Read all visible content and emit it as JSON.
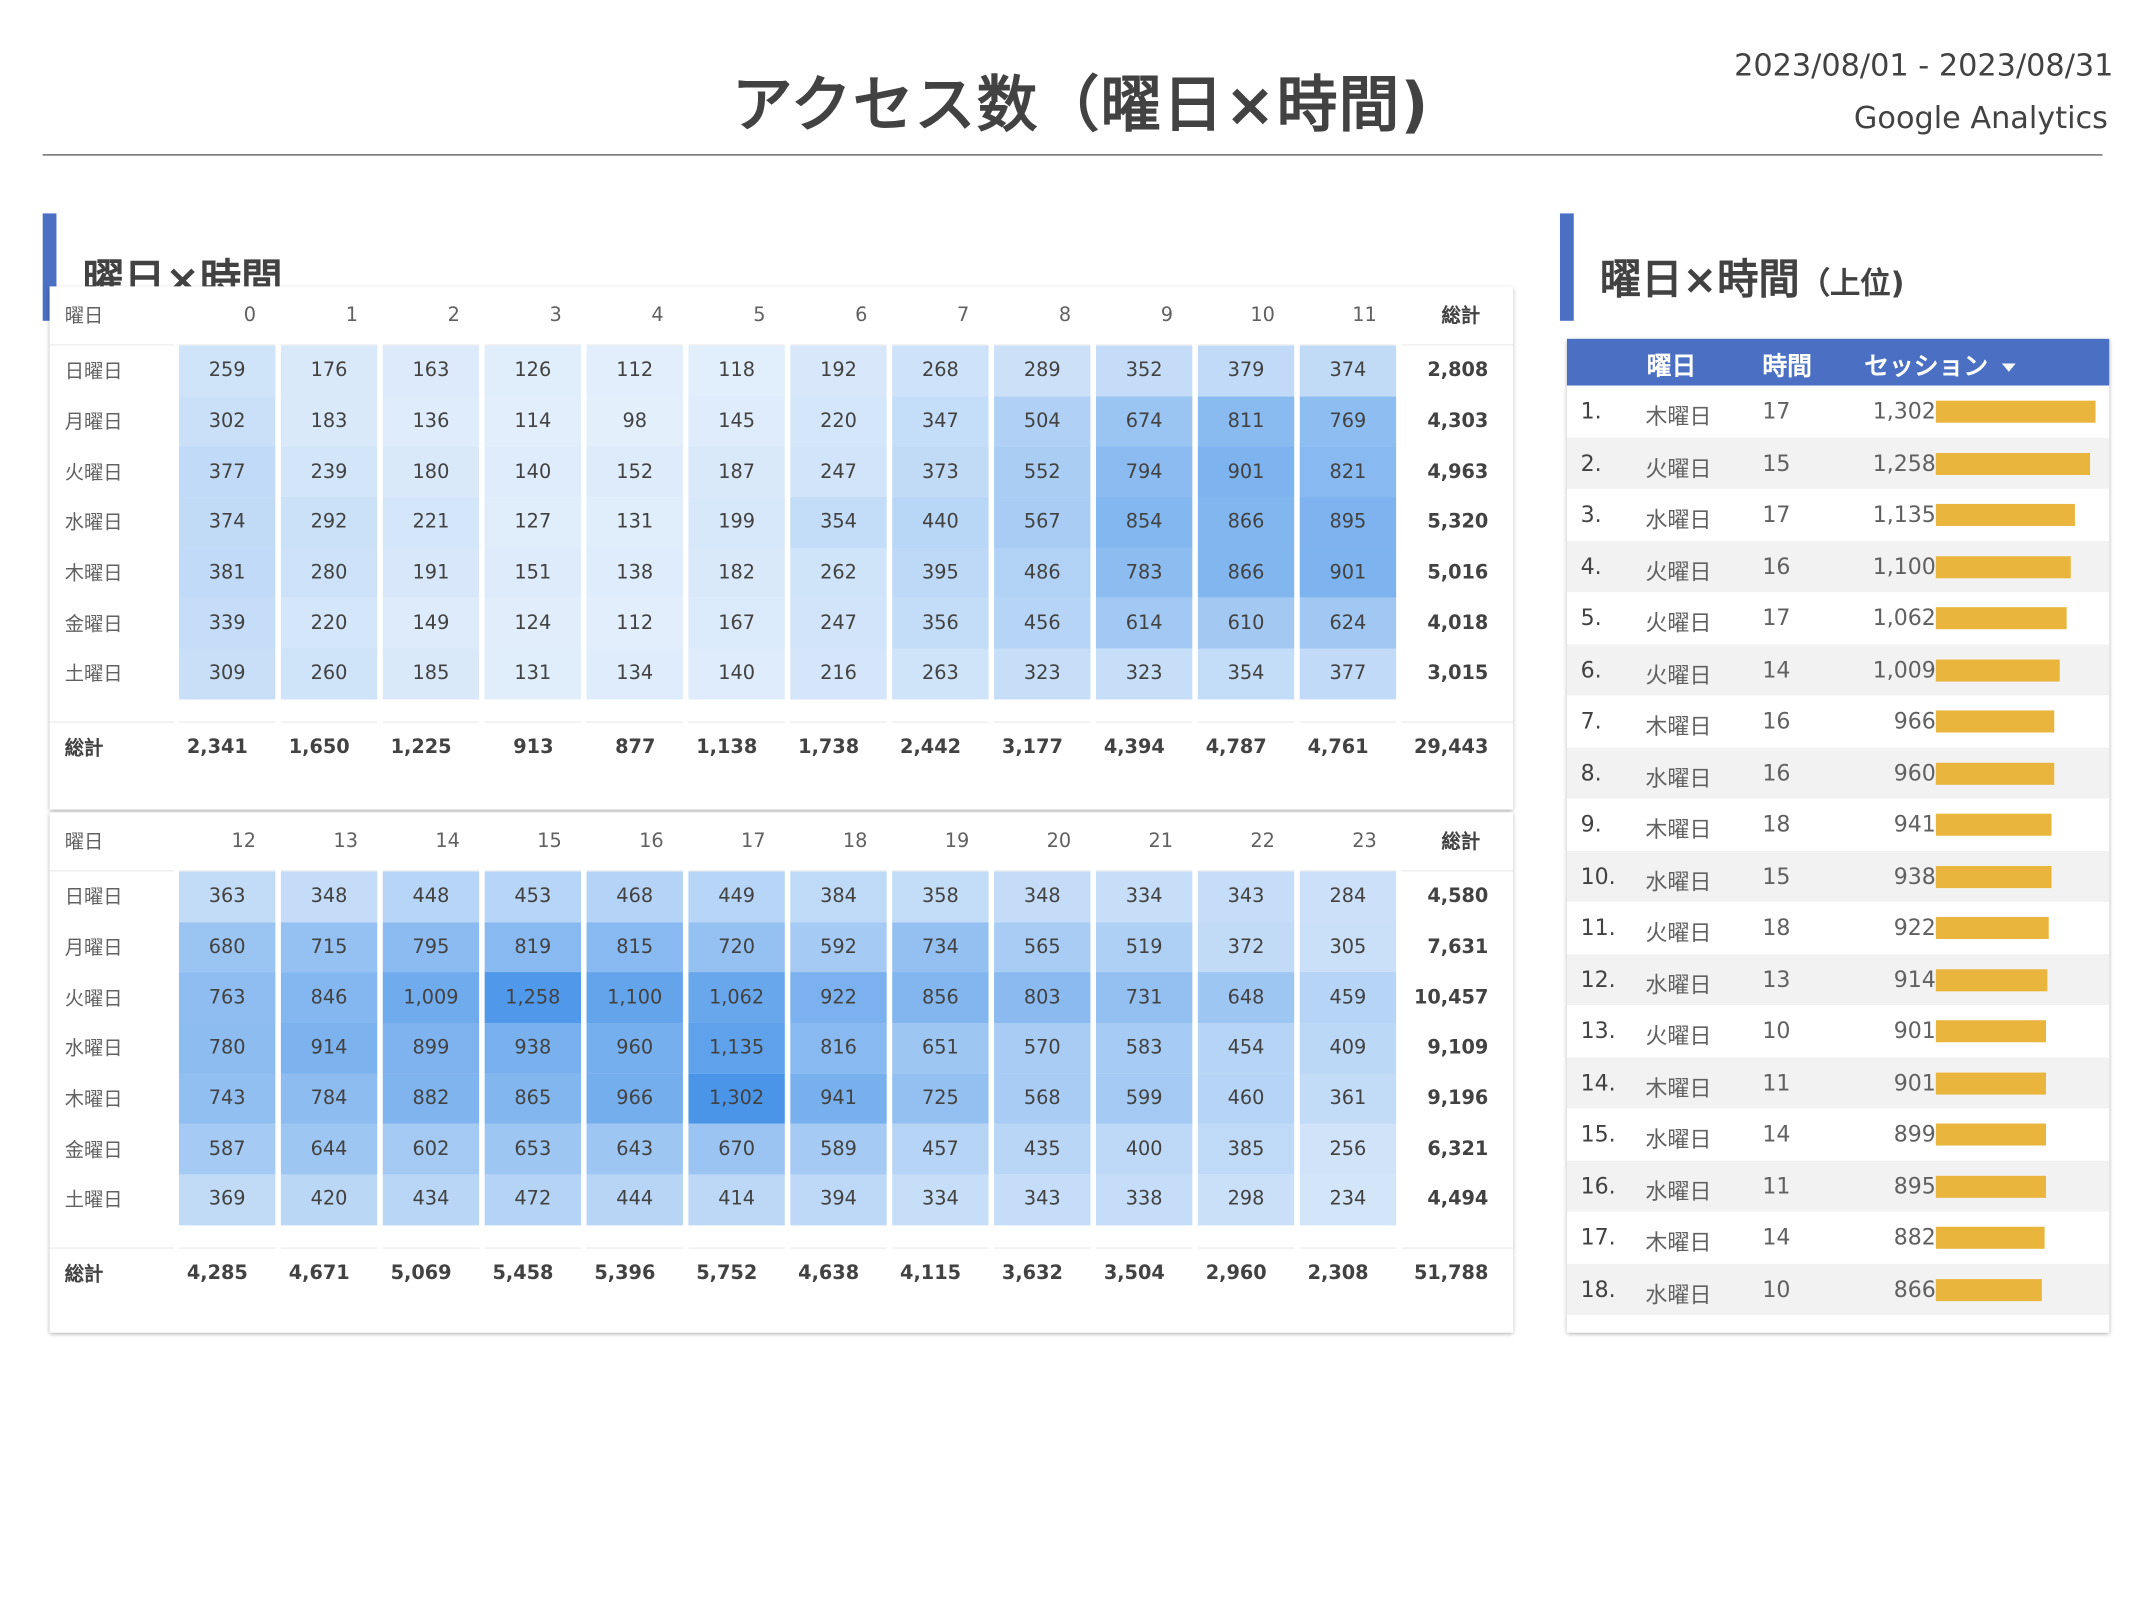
{
  "header": {
    "title": "アクセス数（曜日×時間)",
    "date_range": "2023/08/01 - 2023/08/31",
    "source": "Google Analytics"
  },
  "heatmap_section": {
    "title": "曜日×時間"
  },
  "ranking_section": {
    "title": "曜日×時間",
    "title_suffix": "（上位)"
  },
  "heatmap": {
    "row_header_label": "曜日",
    "total_label": "総計",
    "days": [
      "日曜日",
      "月曜日",
      "火曜日",
      "水曜日",
      "木曜日",
      "金曜日",
      "土曜日"
    ],
    "max_value": 1302,
    "color_low": "#ffffff",
    "color_high": "#4a95e8",
    "tables": [
      {
        "hours": [
          "0",
          "1",
          "2",
          "3",
          "4",
          "5",
          "6",
          "7",
          "8",
          "9",
          "10",
          "11"
        ],
        "rows": [
          {
            "values": [
              259,
              176,
              163,
              126,
              112,
              118,
              192,
              268,
              289,
              352,
              379,
              374
            ],
            "total": "2,808"
          },
          {
            "values": [
              302,
              183,
              136,
              114,
              98,
              145,
              220,
              347,
              504,
              674,
              811,
              769
            ],
            "total": "4,303"
          },
          {
            "values": [
              377,
              239,
              180,
              140,
              152,
              187,
              247,
              373,
              552,
              794,
              901,
              821
            ],
            "total": "4,963"
          },
          {
            "values": [
              374,
              292,
              221,
              127,
              131,
              199,
              354,
              440,
              567,
              854,
              866,
              895
            ],
            "total": "5,320"
          },
          {
            "values": [
              381,
              280,
              191,
              151,
              138,
              182,
              262,
              395,
              486,
              783,
              866,
              901
            ],
            "total": "5,016"
          },
          {
            "values": [
              339,
              220,
              149,
              124,
              112,
              167,
              247,
              356,
              456,
              614,
              610,
              624
            ],
            "total": "4,018"
          },
          {
            "values": [
              309,
              260,
              185,
              131,
              134,
              140,
              216,
              263,
              323,
              323,
              354,
              377
            ],
            "total": "3,015"
          }
        ],
        "column_totals": [
          "2,341",
          "1,650",
          "1,225",
          "913",
          "877",
          "1,138",
          "1,738",
          "2,442",
          "3,177",
          "4,394",
          "4,787",
          "4,761"
        ],
        "grand_total": "29,443"
      },
      {
        "hours": [
          "12",
          "13",
          "14",
          "15",
          "16",
          "17",
          "18",
          "19",
          "20",
          "21",
          "22",
          "23"
        ],
        "rows": [
          {
            "values": [
              363,
              348,
              448,
              453,
              468,
              449,
              384,
              358,
              348,
              334,
              343,
              284
            ],
            "total": "4,580"
          },
          {
            "values": [
              680,
              715,
              795,
              819,
              815,
              720,
              592,
              734,
              565,
              519,
              372,
              305
            ],
            "total": "7,631"
          },
          {
            "values": [
              763,
              846,
              1009,
              1258,
              1100,
              1062,
              922,
              856,
              803,
              731,
              648,
              459
            ],
            "total": "10,457"
          },
          {
            "values": [
              780,
              914,
              899,
              938,
              960,
              1135,
              816,
              651,
              570,
              583,
              454,
              409
            ],
            "total": "9,109"
          },
          {
            "values": [
              743,
              784,
              882,
              865,
              966,
              1302,
              941,
              725,
              568,
              599,
              460,
              361
            ],
            "total": "9,196"
          },
          {
            "values": [
              587,
              644,
              602,
              653,
              643,
              670,
              589,
              457,
              435,
              400,
              385,
              256
            ],
            "total": "6,321"
          },
          {
            "values": [
              369,
              420,
              434,
              472,
              444,
              414,
              394,
              334,
              343,
              338,
              298,
              234
            ],
            "total": "4,494"
          }
        ],
        "column_totals": [
          "4,285",
          "4,671",
          "5,069",
          "5,458",
          "5,396",
          "5,752",
          "4,638",
          "4,115",
          "3,632",
          "3,504",
          "2,960",
          "2,308"
        ],
        "grand_total": "51,788"
      }
    ]
  },
  "ranking": {
    "columns": {
      "day": "曜日",
      "hour": "時間",
      "sessions": "セッション"
    },
    "sort_icon": "sort-descending-icon",
    "bar_color": "#eab53d",
    "bar_max": 1302,
    "rows": [
      {
        "rank": "1.",
        "day": "木曜日",
        "hour": "17",
        "sessions": 1302
      },
      {
        "rank": "2.",
        "day": "火曜日",
        "hour": "15",
        "sessions": 1258
      },
      {
        "rank": "3.",
        "day": "水曜日",
        "hour": "17",
        "sessions": 1135
      },
      {
        "rank": "4.",
        "day": "火曜日",
        "hour": "16",
        "sessions": 1100
      },
      {
        "rank": "5.",
        "day": "火曜日",
        "hour": "17",
        "sessions": 1062
      },
      {
        "rank": "6.",
        "day": "火曜日",
        "hour": "14",
        "sessions": 1009
      },
      {
        "rank": "7.",
        "day": "木曜日",
        "hour": "16",
        "sessions": 966
      },
      {
        "rank": "8.",
        "day": "水曜日",
        "hour": "16",
        "sessions": 960
      },
      {
        "rank": "9.",
        "day": "木曜日",
        "hour": "18",
        "sessions": 941
      },
      {
        "rank": "10.",
        "day": "水曜日",
        "hour": "15",
        "sessions": 938
      },
      {
        "rank": "11.",
        "day": "火曜日",
        "hour": "18",
        "sessions": 922
      },
      {
        "rank": "12.",
        "day": "水曜日",
        "hour": "13",
        "sessions": 914
      },
      {
        "rank": "13.",
        "day": "火曜日",
        "hour": "10",
        "sessions": 901
      },
      {
        "rank": "14.",
        "day": "木曜日",
        "hour": "11",
        "sessions": 901
      },
      {
        "rank": "15.",
        "day": "水曜日",
        "hour": "14",
        "sessions": 899
      },
      {
        "rank": "16.",
        "day": "水曜日",
        "hour": "11",
        "sessions": 895
      },
      {
        "rank": "17.",
        "day": "木曜日",
        "hour": "14",
        "sessions": 882
      },
      {
        "rank": "18.",
        "day": "水曜日",
        "hour": "10",
        "sessions": 866
      }
    ]
  }
}
